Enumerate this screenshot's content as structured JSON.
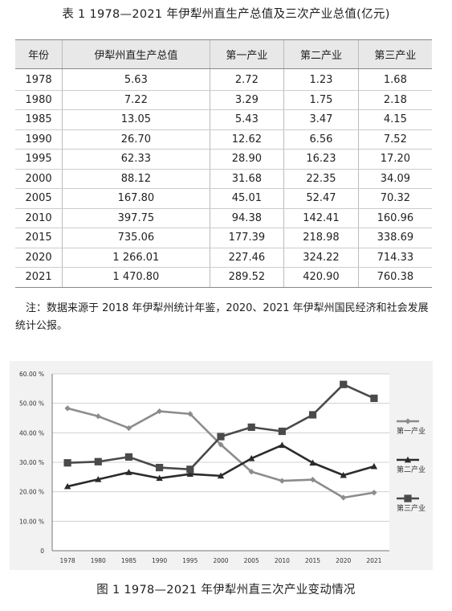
{
  "table": {
    "title": "表 1  1978—2021 年伊犁州直生产总值及三次产业总值(亿元)",
    "headers": [
      "年份",
      "伊犁州直生产总值",
      "第一产业",
      "第二产业",
      "第三产业"
    ],
    "rows": [
      [
        "1978",
        "5.63",
        "2.72",
        "1.23",
        "1.68"
      ],
      [
        "1980",
        "7.22",
        "3.29",
        "1.75",
        "2.18"
      ],
      [
        "1985",
        "13.05",
        "5.43",
        "3.47",
        "4.15"
      ],
      [
        "1990",
        "26.70",
        "12.62",
        "6.56",
        "7.52"
      ],
      [
        "1995",
        "62.33",
        "28.90",
        "16.23",
        "17.20"
      ],
      [
        "2000",
        "88.12",
        "31.68",
        "22.35",
        "34.09"
      ],
      [
        "2005",
        "167.80",
        "45.01",
        "52.47",
        "70.32"
      ],
      [
        "2010",
        "397.75",
        "94.38",
        "142.41",
        "160.96"
      ],
      [
        "2015",
        "735.06",
        "177.39",
        "218.98",
        "338.69"
      ],
      [
        "2020",
        "1 266.01",
        "227.46",
        "324.22",
        "714.33"
      ],
      [
        "2021",
        "1 470.80",
        "289.52",
        "420.90",
        "760.38"
      ]
    ]
  },
  "note": "注：数据来源于 2018 年伊犁州统计年鉴，2020、2021 年伊犁州国民经济和社会发展统计公报。",
  "figure_caption": "图 1  1978—2021 年伊犁州直三次产业变动情况",
  "chart_data": {
    "type": "line",
    "x": [
      "1978",
      "1980",
      "1985",
      "1990",
      "1995",
      "2000",
      "2005",
      "2010",
      "2015",
      "2020",
      "2021"
    ],
    "y_ticks": [
      "0",
      "10.00 %",
      "20.00 %",
      "30.00 %",
      "40.00 %",
      "50.00 %",
      "60.00 %"
    ],
    "ylim": [
      0,
      60
    ],
    "grid": true,
    "legend_position": "right",
    "series": [
      {
        "name": "第一产业",
        "marker": "diamond",
        "color": "#8c8c8c",
        "values": [
          48.3,
          45.6,
          41.6,
          47.3,
          46.4,
          36.0,
          26.8,
          23.7,
          24.1,
          18.0,
          19.7
        ]
      },
      {
        "name": "第二产业",
        "marker": "triangle",
        "color": "#2b2b2b",
        "values": [
          21.8,
          24.2,
          26.6,
          24.6,
          26.0,
          25.4,
          31.3,
          35.8,
          29.8,
          25.6,
          28.6
        ]
      },
      {
        "name": "第三产业",
        "marker": "square",
        "color": "#4a4a4a",
        "values": [
          29.8,
          30.2,
          31.8,
          28.2,
          27.6,
          38.7,
          41.9,
          40.5,
          46.1,
          56.4,
          51.7
        ]
      }
    ]
  }
}
